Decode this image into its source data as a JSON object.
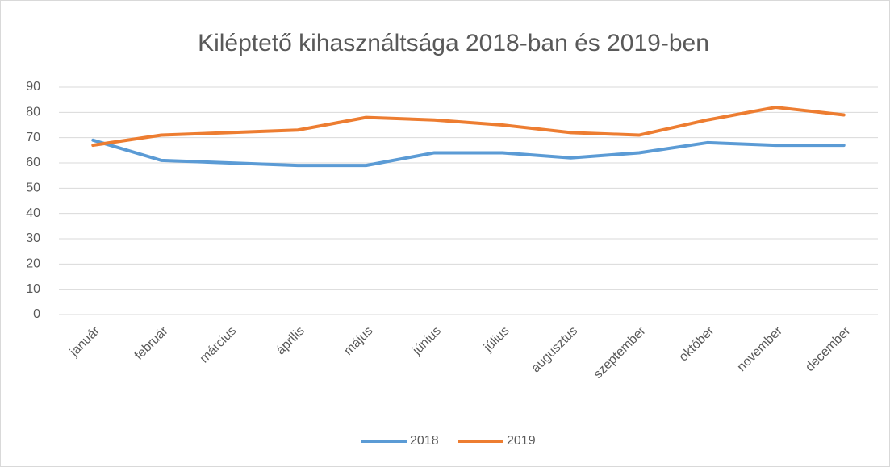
{
  "chart_data": {
    "type": "line",
    "title": "Kiléptető kihasználtsága 2018-ban és 2019-ben",
    "categories": [
      "január",
      "február",
      "március",
      "április",
      "május",
      "június",
      "július",
      "augusztus",
      "szeptember",
      "október",
      "november",
      "december"
    ],
    "series": [
      {
        "name": "2018",
        "color": "#5b9bd5",
        "values": [
          69,
          61,
          60,
          59,
          59,
          64,
          64,
          62,
          64,
          68,
          67,
          67
        ]
      },
      {
        "name": "2019",
        "color": "#ed7d31",
        "values": [
          67,
          71,
          72,
          73,
          78,
          77,
          75,
          72,
          71,
          77,
          82,
          79
        ]
      }
    ],
    "ylim": [
      0,
      90
    ],
    "yticks": [
      0,
      10,
      20,
      30,
      40,
      50,
      60,
      70,
      80,
      90
    ],
    "grid": true,
    "legend": "bottom"
  }
}
